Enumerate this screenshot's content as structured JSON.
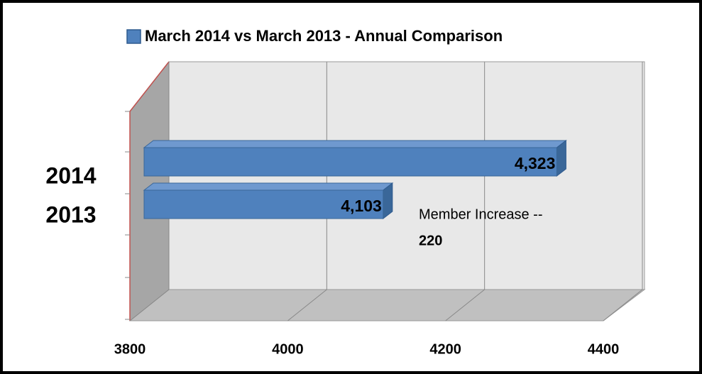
{
  "chart_data": {
    "type": "bar3d",
    "orientation": "horizontal",
    "categories": [
      "2014",
      "2013"
    ],
    "series": [
      {
        "name": "March 2014 vs March 2013 - Annual Comparison",
        "color": "#4f81bd",
        "values": [
          4323,
          4103
        ],
        "value_labels": [
          "4,323",
          "4,103"
        ]
      }
    ],
    "xlim": [
      3800,
      4400
    ],
    "xticks": [
      3800,
      4000,
      4200,
      4400
    ],
    "grid": true,
    "annotations": [
      "Member Increase  --",
      "220"
    ]
  }
}
